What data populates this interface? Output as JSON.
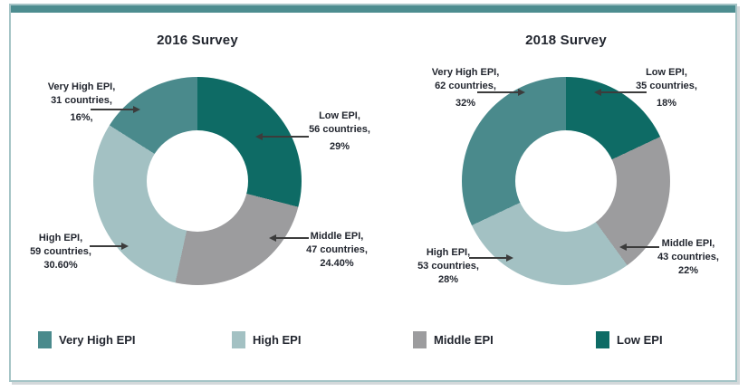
{
  "theme": {
    "accent_bar": "#4D8D90",
    "frame_border": "#A5C4C6",
    "text": "#21252E",
    "leader_line": "#3C3C3C"
  },
  "chart_data": [
    {
      "type": "donut",
      "title": "2016 Survey",
      "segment_order": "clockwise from 12 o'clock",
      "segments": [
        {
          "name": "Low EPI",
          "countries": 56,
          "percent": 29,
          "color": "#0E6B65",
          "callout_lines": [
            "Low EPI,",
            "56 countries,",
            "29%"
          ]
        },
        {
          "name": "Middle EPI",
          "countries": 47,
          "percent": 24.4,
          "color": "#9C9C9E",
          "callout_lines": [
            "Middle EPI,",
            "47 countries,",
            "24.40%"
          ]
        },
        {
          "name": "High EPI",
          "countries": 59,
          "percent": 30.6,
          "color": "#A3C1C3",
          "callout_lines": [
            "High EPI,",
            "59 countries,",
            "30.60%"
          ]
        },
        {
          "name": "Very High EPI",
          "countries": 31,
          "percent": 16,
          "color": "#4A8A8C",
          "callout_lines": [
            "Very High EPI,",
            "31 countries,",
            "16%,"
          ]
        }
      ]
    },
    {
      "type": "donut",
      "title": "2018 Survey",
      "segment_order": "clockwise from 12 o'clock",
      "segments": [
        {
          "name": "Low EPI",
          "countries": 35,
          "percent": 18,
          "color": "#0E6B65",
          "callout_lines": [
            "Low EPI,",
            "35 countries,",
            "18%"
          ]
        },
        {
          "name": "Middle EPI",
          "countries": 43,
          "percent": 22,
          "color": "#9C9C9E",
          "callout_lines": [
            "Middle EPI,",
            "43 countries,",
            "22%"
          ]
        },
        {
          "name": "High EPI",
          "countries": 53,
          "percent": 28,
          "color": "#A3C1C3",
          "callout_lines": [
            "High EPI,",
            "53 countries,",
            "28%"
          ]
        },
        {
          "name": "Very High EPI",
          "countries": 62,
          "percent": 32,
          "color": "#4A8A8C",
          "callout_lines": [
            "Very High EPI,",
            "62 countries,",
            "32%"
          ]
        }
      ]
    }
  ],
  "legend": {
    "items": [
      {
        "label": "Very High EPI",
        "color": "#4A8A8C"
      },
      {
        "label": "High EPI",
        "color": "#A3C1C3"
      },
      {
        "label": "Middle EPI",
        "color": "#9C9C9E"
      },
      {
        "label": "Low EPI",
        "color": "#0E6B65"
      }
    ]
  }
}
